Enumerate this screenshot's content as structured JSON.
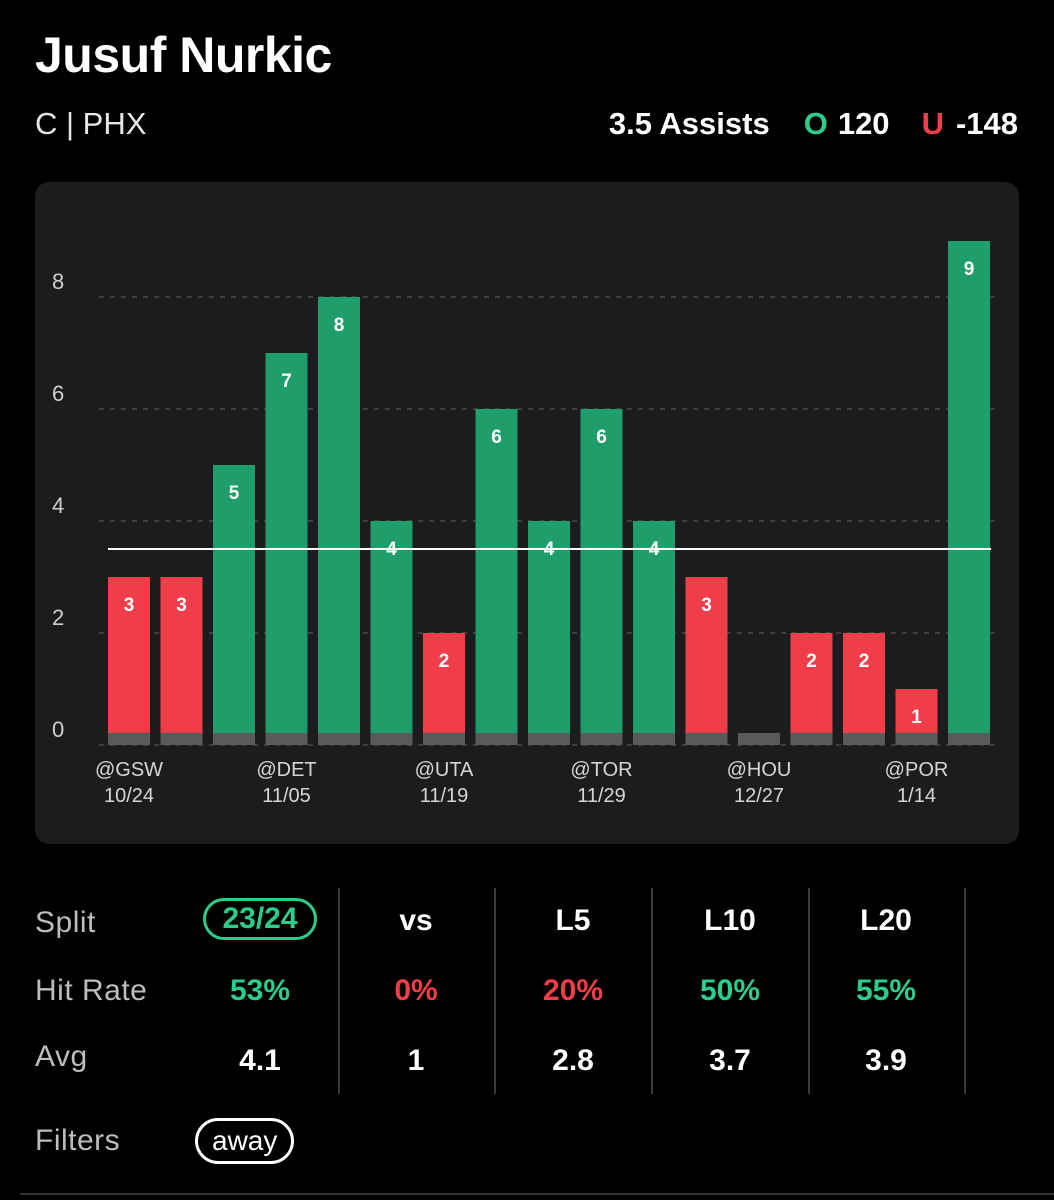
{
  "player": {
    "name": "Jusuf Nurkic",
    "position_team": "C | PHX"
  },
  "prop": {
    "label": "3.5 Assists",
    "over_letter": "O",
    "over_odds": "120",
    "under_letter": "U",
    "under_odds": "-148"
  },
  "colors": {
    "over": "#2ecc8a",
    "under": "#ef3e4a",
    "bar_green": "#1f9e6c",
    "bar_red": "#ef3e4a",
    "card_bg": "#1c1c1f"
  },
  "chart_data": {
    "type": "bar",
    "line": 3.5,
    "ylim": [
      0,
      9
    ],
    "yticks": [
      "0",
      "2",
      "4",
      "6",
      "8"
    ],
    "values": [
      3,
      3,
      5,
      7,
      8,
      4,
      2,
      6,
      4,
      6,
      4,
      3,
      0,
      2,
      2,
      1,
      9
    ],
    "x_labels": [
      {
        "index": 0,
        "opp": "@GSW",
        "date": "10/24"
      },
      {
        "index": 3,
        "opp": "@DET",
        "date": "11/05"
      },
      {
        "index": 6,
        "opp": "@UTA",
        "date": "11/19"
      },
      {
        "index": 9,
        "opp": "@TOR",
        "date": "11/29"
      },
      {
        "index": 12,
        "opp": "@HOU",
        "date": "12/27"
      },
      {
        "index": 15,
        "opp": "@POR",
        "date": "1/14"
      }
    ],
    "grid": true
  },
  "split_table": {
    "row_labels": [
      "Split",
      "Hit Rate",
      "Avg"
    ],
    "columns": [
      {
        "split": "23/24",
        "hit_rate": "53%",
        "avg": "4.1",
        "hit_color": "green",
        "selected": true
      },
      {
        "split": "vs",
        "hit_rate": "0%",
        "avg": "1",
        "hit_color": "red"
      },
      {
        "split": "L5",
        "hit_rate": "20%",
        "avg": "2.8",
        "hit_color": "red"
      },
      {
        "split": "L10",
        "hit_rate": "50%",
        "avg": "3.7",
        "hit_color": "green"
      },
      {
        "split": "L20",
        "hit_rate": "55%",
        "avg": "3.9",
        "hit_color": "green"
      }
    ]
  },
  "filters": {
    "label": "Filters",
    "active": "away"
  }
}
